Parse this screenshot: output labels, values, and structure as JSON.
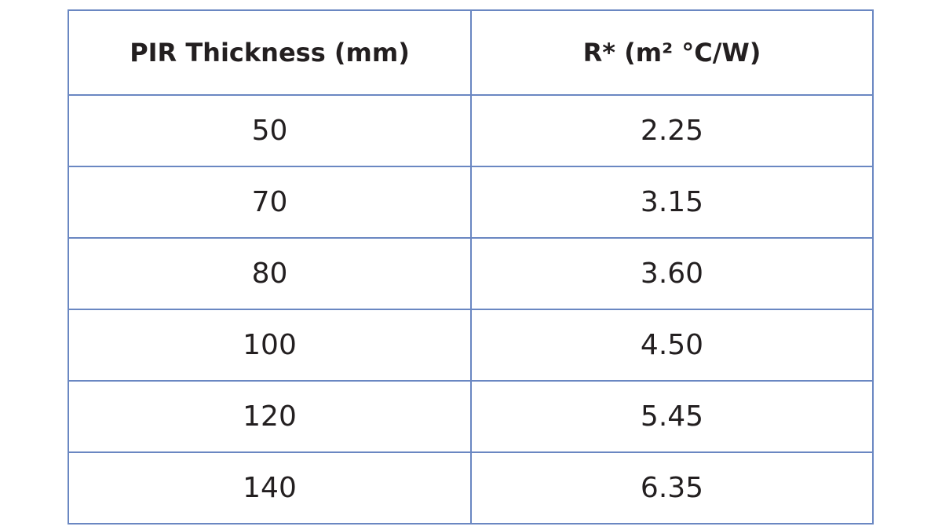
{
  "table": {
    "header": [
      "PIR Thickness (mm)",
      "R* (m² °C/W)"
    ],
    "rows": [
      [
        "50",
        "2.25"
      ],
      [
        "70",
        "3.15"
      ],
      [
        "80",
        "3.60"
      ],
      [
        "100",
        "4.50"
      ],
      [
        "120",
        "5.45"
      ],
      [
        "140",
        "6.35"
      ]
    ]
  }
}
